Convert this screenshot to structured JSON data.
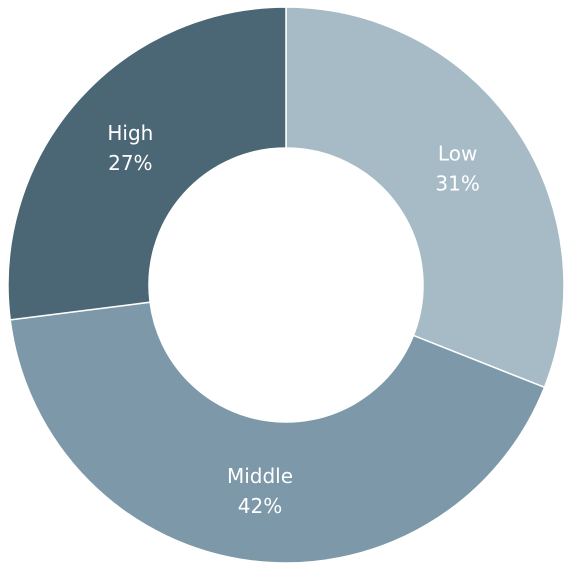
{
  "chart_data": {
    "type": "pie",
    "variant": "donut",
    "title": "",
    "slices": [
      {
        "label": "Low",
        "value": 31,
        "value_label": "31%",
        "color": "#a7bbc6"
      },
      {
        "label": "Middle",
        "value": 42,
        "value_label": "42%",
        "color": "#7d99a9"
      },
      {
        "label": "High",
        "value": 27,
        "value_label": "27%",
        "color": "#4b6675"
      }
    ],
    "start_angle": "12 o'clock",
    "direction": "clockwise",
    "legend": "none",
    "data_labels": "inside slices"
  }
}
